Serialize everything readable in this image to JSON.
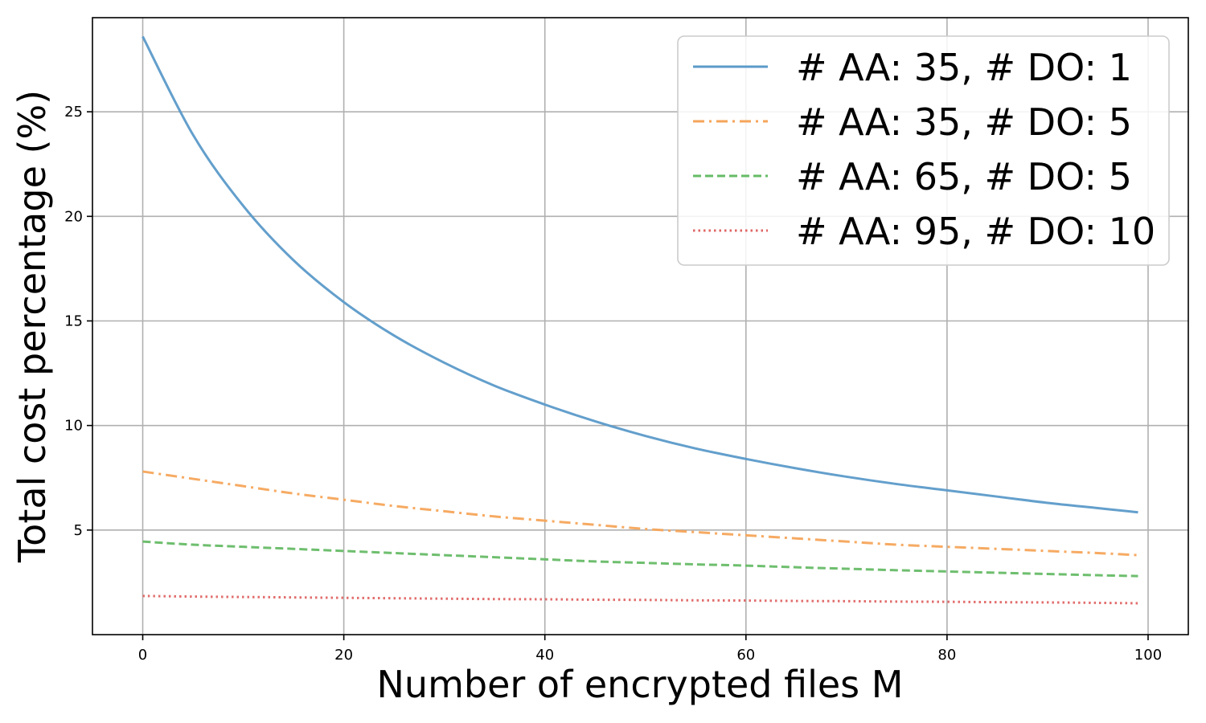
{
  "chart_data": {
    "type": "line",
    "xlabel": "Number of encrypted files M",
    "ylabel": "Total cost percentage (%)",
    "xlim": [
      -5,
      104
    ],
    "ylim": [
      0,
      29.5
    ],
    "grid": true,
    "legend_position": "top-right",
    "x_ticks": [
      0,
      20,
      40,
      60,
      80,
      100
    ],
    "y_ticks": [
      5,
      10,
      15,
      20,
      25
    ],
    "x": [
      0,
      5,
      10,
      15,
      20,
      25,
      30,
      35,
      40,
      45,
      50,
      55,
      60,
      65,
      70,
      75,
      80,
      85,
      90,
      95,
      99
    ],
    "series": [
      {
        "name": "# AA: 35, # DO: 1",
        "color": "#5b9ac9",
        "dash": "solid",
        "values": [
          28.6,
          23.9,
          20.5,
          17.9,
          15.9,
          14.3,
          13.0,
          11.9,
          11.0,
          10.2,
          9.5,
          8.9,
          8.4,
          7.95,
          7.55,
          7.2,
          6.9,
          6.6,
          6.3,
          6.05,
          5.85
        ]
      },
      {
        "name": "# AA: 35, # DO: 5",
        "color": "#f5a55a",
        "dash": "dashdot",
        "values": [
          7.8,
          7.45,
          7.1,
          6.75,
          6.45,
          6.15,
          5.9,
          5.65,
          5.45,
          5.25,
          5.05,
          4.9,
          4.75,
          4.6,
          4.45,
          4.3,
          4.2,
          4.1,
          4.0,
          3.9,
          3.8
        ]
      },
      {
        "name": "# AA: 65, # DO: 5",
        "color": "#66bb66",
        "dash": "dashed",
        "values": [
          4.45,
          4.3,
          4.2,
          4.1,
          4.0,
          3.9,
          3.8,
          3.7,
          3.6,
          3.5,
          3.43,
          3.36,
          3.3,
          3.22,
          3.15,
          3.08,
          3.02,
          2.96,
          2.9,
          2.84,
          2.8
        ]
      },
      {
        "name": "# AA: 95, # DO: 10",
        "color": "#e06666",
        "dash": "dotted",
        "values": [
          1.85,
          1.82,
          1.8,
          1.78,
          1.76,
          1.74,
          1.72,
          1.7,
          1.69,
          1.67,
          1.66,
          1.64,
          1.63,
          1.61,
          1.6,
          1.58,
          1.57,
          1.55,
          1.54,
          1.52,
          1.5
        ]
      }
    ]
  }
}
